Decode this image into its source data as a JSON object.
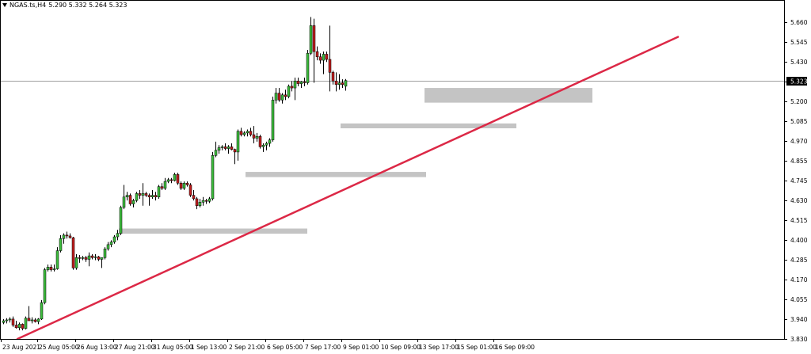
{
  "header": {
    "symbol": "NGAS.ts,H4",
    "ohlc": "5.290 5.332 5.264 5.323"
  },
  "chart_data": {
    "type": "candlestick",
    "ylim": [
      3.83,
      5.745
    ],
    "y_ticks": [
      "5.660",
      "5.545",
      "5.430",
      "5.315",
      "5.200",
      "5.085",
      "4.970",
      "4.855",
      "4.745",
      "4.630",
      "4.515",
      "4.400",
      "4.285",
      "4.170",
      "4.055",
      "3.940",
      "3.830"
    ],
    "x_ticks": [
      "23 Aug 2021",
      "25 Aug 05:00",
      "26 Aug 13:00",
      "27 Aug 21:00",
      "31 Aug 05:00",
      "1 Sep 13:00",
      "2 Sep 21:00",
      "6 Sep 05:00",
      "7 Sep 17:00",
      "9 Sep 01:00",
      "10 Sep 09:00",
      "13 Sep 17:00",
      "15 Sep 01:00",
      "16 Sep 09:00"
    ],
    "current_price": 5.323,
    "current_price_label": "5.323",
    "colors": {
      "up": "#3dbd3d",
      "down": "#c01d1d",
      "zone": "#c4c4c4",
      "trend": "#dc2846",
      "price_line": "#a0a0a0"
    },
    "candles": [
      [
        3.925,
        3.945,
        3.915,
        3.935
      ],
      [
        3.935,
        3.95,
        3.92,
        3.94
      ],
      [
        3.94,
        3.955,
        3.925,
        3.945
      ],
      [
        3.945,
        3.96,
        3.9,
        3.91
      ],
      [
        3.91,
        3.935,
        3.89,
        3.895
      ],
      [
        3.895,
        3.925,
        3.88,
        3.915
      ],
      [
        3.915,
        3.92,
        3.88,
        3.89
      ],
      [
        3.89,
        3.96,
        3.885,
        3.95
      ],
      [
        3.95,
        4.02,
        3.935,
        3.935
      ],
      [
        3.935,
        3.955,
        3.92,
        3.94
      ],
      [
        3.94,
        3.95,
        3.925,
        3.93
      ],
      [
        3.93,
        3.95,
        3.915,
        3.945
      ],
      [
        3.945,
        4.055,
        3.94,
        4.04
      ],
      [
        4.04,
        4.24,
        4.03,
        4.23
      ],
      [
        4.23,
        4.26,
        4.22,
        4.245
      ],
      [
        4.245,
        4.26,
        4.22,
        4.23
      ],
      [
        4.23,
        4.26,
        4.22,
        4.235
      ],
      [
        4.235,
        4.36,
        4.23,
        4.34
      ],
      [
        4.34,
        4.43,
        4.33,
        4.41
      ],
      [
        4.41,
        4.44,
        4.38,
        4.43
      ],
      [
        4.43,
        4.45,
        4.41,
        4.425
      ],
      [
        4.425,
        4.44,
        4.41,
        4.415
      ],
      [
        4.415,
        4.42,
        4.23,
        4.24
      ],
      [
        4.24,
        4.32,
        4.23,
        4.3
      ],
      [
        4.3,
        4.315,
        4.27,
        4.295
      ],
      [
        4.295,
        4.31,
        4.285,
        4.3
      ],
      [
        4.3,
        4.31,
        4.275,
        4.29
      ],
      [
        4.29,
        4.33,
        4.25,
        4.31
      ],
      [
        4.31,
        4.32,
        4.29,
        4.3
      ],
      [
        4.3,
        4.32,
        4.285,
        4.305
      ],
      [
        4.305,
        4.31,
        4.28,
        4.29
      ],
      [
        4.29,
        4.3,
        4.24,
        4.3
      ],
      [
        4.3,
        4.36,
        4.29,
        4.35
      ],
      [
        4.35,
        4.39,
        4.34,
        4.375
      ],
      [
        4.375,
        4.4,
        4.36,
        4.39
      ],
      [
        4.39,
        4.43,
        4.38,
        4.42
      ],
      [
        4.42,
        4.46,
        4.4,
        4.44
      ],
      [
        4.44,
        4.6,
        4.43,
        4.59
      ],
      [
        4.59,
        4.72,
        4.58,
        4.65
      ],
      [
        4.65,
        4.68,
        4.63,
        4.66
      ],
      [
        4.66,
        4.67,
        4.6,
        4.61
      ],
      [
        4.61,
        4.64,
        4.59,
        4.63
      ],
      [
        4.63,
        4.68,
        4.62,
        4.67
      ],
      [
        4.67,
        4.69,
        4.64,
        4.66
      ],
      [
        4.66,
        4.73,
        4.6,
        4.67
      ],
      [
        4.67,
        4.68,
        4.65,
        4.66
      ],
      [
        4.66,
        4.67,
        4.6,
        4.65
      ],
      [
        4.65,
        4.69,
        4.64,
        4.66
      ],
      [
        4.66,
        4.68,
        4.63,
        4.65
      ],
      [
        4.65,
        4.72,
        4.64,
        4.71
      ],
      [
        4.71,
        4.73,
        4.69,
        4.7
      ],
      [
        4.7,
        4.76,
        4.69,
        4.74
      ],
      [
        4.74,
        4.76,
        4.73,
        4.75
      ],
      [
        4.75,
        4.76,
        4.73,
        4.745
      ],
      [
        4.745,
        4.79,
        4.74,
        4.78
      ],
      [
        4.78,
        4.79,
        4.72,
        4.73
      ],
      [
        4.73,
        4.74,
        4.69,
        4.7
      ],
      [
        4.7,
        4.74,
        4.69,
        4.73
      ],
      [
        4.73,
        4.74,
        4.71,
        4.72
      ],
      [
        4.72,
        4.73,
        4.65,
        4.66
      ],
      [
        4.66,
        4.69,
        4.63,
        4.64
      ],
      [
        4.64,
        4.65,
        4.58,
        4.6
      ],
      [
        4.6,
        4.64,
        4.59,
        4.62
      ],
      [
        4.62,
        4.65,
        4.6,
        4.63
      ],
      [
        4.63,
        4.64,
        4.61,
        4.625
      ],
      [
        4.625,
        4.65,
        4.615,
        4.64
      ],
      [
        4.64,
        4.91,
        4.63,
        4.89
      ],
      [
        4.89,
        4.97,
        4.88,
        4.92
      ],
      [
        4.92,
        4.95,
        4.9,
        4.935
      ],
      [
        4.935,
        4.95,
        4.92,
        4.94
      ],
      [
        4.94,
        4.96,
        4.92,
        4.93
      ],
      [
        4.93,
        4.95,
        4.9,
        4.94
      ],
      [
        4.94,
        4.96,
        4.92,
        4.925
      ],
      [
        4.925,
        4.93,
        4.84,
        4.91
      ],
      [
        4.91,
        5.04,
        4.86,
        5.03
      ],
      [
        5.03,
        5.05,
        5.0,
        5.01
      ],
      [
        5.01,
        5.03,
        5.0,
        5.02
      ],
      [
        5.02,
        5.04,
        5.0,
        5.03
      ],
      [
        5.03,
        5.05,
        5.0,
        5.01
      ],
      [
        5.01,
        5.06,
        4.96,
        4.99
      ],
      [
        4.99,
        5.02,
        4.97,
        5.0
      ],
      [
        5.0,
        5.01,
        4.93,
        4.94
      ],
      [
        4.94,
        4.96,
        4.91,
        4.95
      ],
      [
        4.95,
        4.97,
        4.92,
        4.96
      ],
      [
        4.96,
        4.99,
        4.94,
        4.98
      ],
      [
        4.98,
        5.23,
        4.97,
        5.21
      ],
      [
        5.21,
        5.28,
        5.19,
        5.25
      ],
      [
        5.25,
        5.28,
        5.2,
        5.21
      ],
      [
        5.21,
        5.25,
        5.19,
        5.24
      ],
      [
        5.24,
        5.27,
        5.21,
        5.23
      ],
      [
        5.23,
        5.3,
        5.22,
        5.29
      ],
      [
        5.29,
        5.32,
        5.26,
        5.28
      ],
      [
        5.28,
        5.34,
        5.21,
        5.32
      ],
      [
        5.32,
        5.34,
        5.29,
        5.305
      ],
      [
        5.305,
        5.32,
        5.28,
        5.315
      ],
      [
        5.315,
        5.34,
        5.29,
        5.31
      ],
      [
        5.31,
        5.5,
        5.3,
        5.48
      ],
      [
        5.48,
        5.69,
        5.47,
        5.64
      ],
      [
        5.64,
        5.68,
        5.31,
        5.49
      ],
      [
        5.49,
        5.52,
        5.44,
        5.46
      ],
      [
        5.46,
        5.48,
        5.42,
        5.44
      ],
      [
        5.44,
        5.49,
        5.36,
        5.475
      ],
      [
        5.475,
        5.49,
        5.43,
        5.445
      ],
      [
        5.445,
        5.64,
        5.26,
        5.37
      ],
      [
        5.37,
        5.38,
        5.3,
        5.32
      ],
      [
        5.32,
        5.37,
        5.26,
        5.3
      ],
      [
        5.3,
        5.36,
        5.27,
        5.31
      ],
      [
        5.31,
        5.33,
        5.28,
        5.3
      ],
      [
        5.29,
        5.332,
        5.264,
        5.323
      ]
    ],
    "zones": [
      {
        "from_index": 36.5,
        "to_index": 96,
        "top": 4.468,
        "bottom": 4.438
      },
      {
        "from_index": 76.5,
        "to_index": 133.5,
        "top": 4.795,
        "bottom": 4.765
      },
      {
        "from_index": 106.5,
        "to_index": 162,
        "top": 5.075,
        "bottom": 5.047
      },
      {
        "from_index": 133,
        "to_index": 186,
        "top": 5.28,
        "bottom": 5.195
      }
    ],
    "trendline": {
      "from": [
        4.5,
        3.83
      ],
      "to": [
        213,
        5.575
      ]
    }
  }
}
